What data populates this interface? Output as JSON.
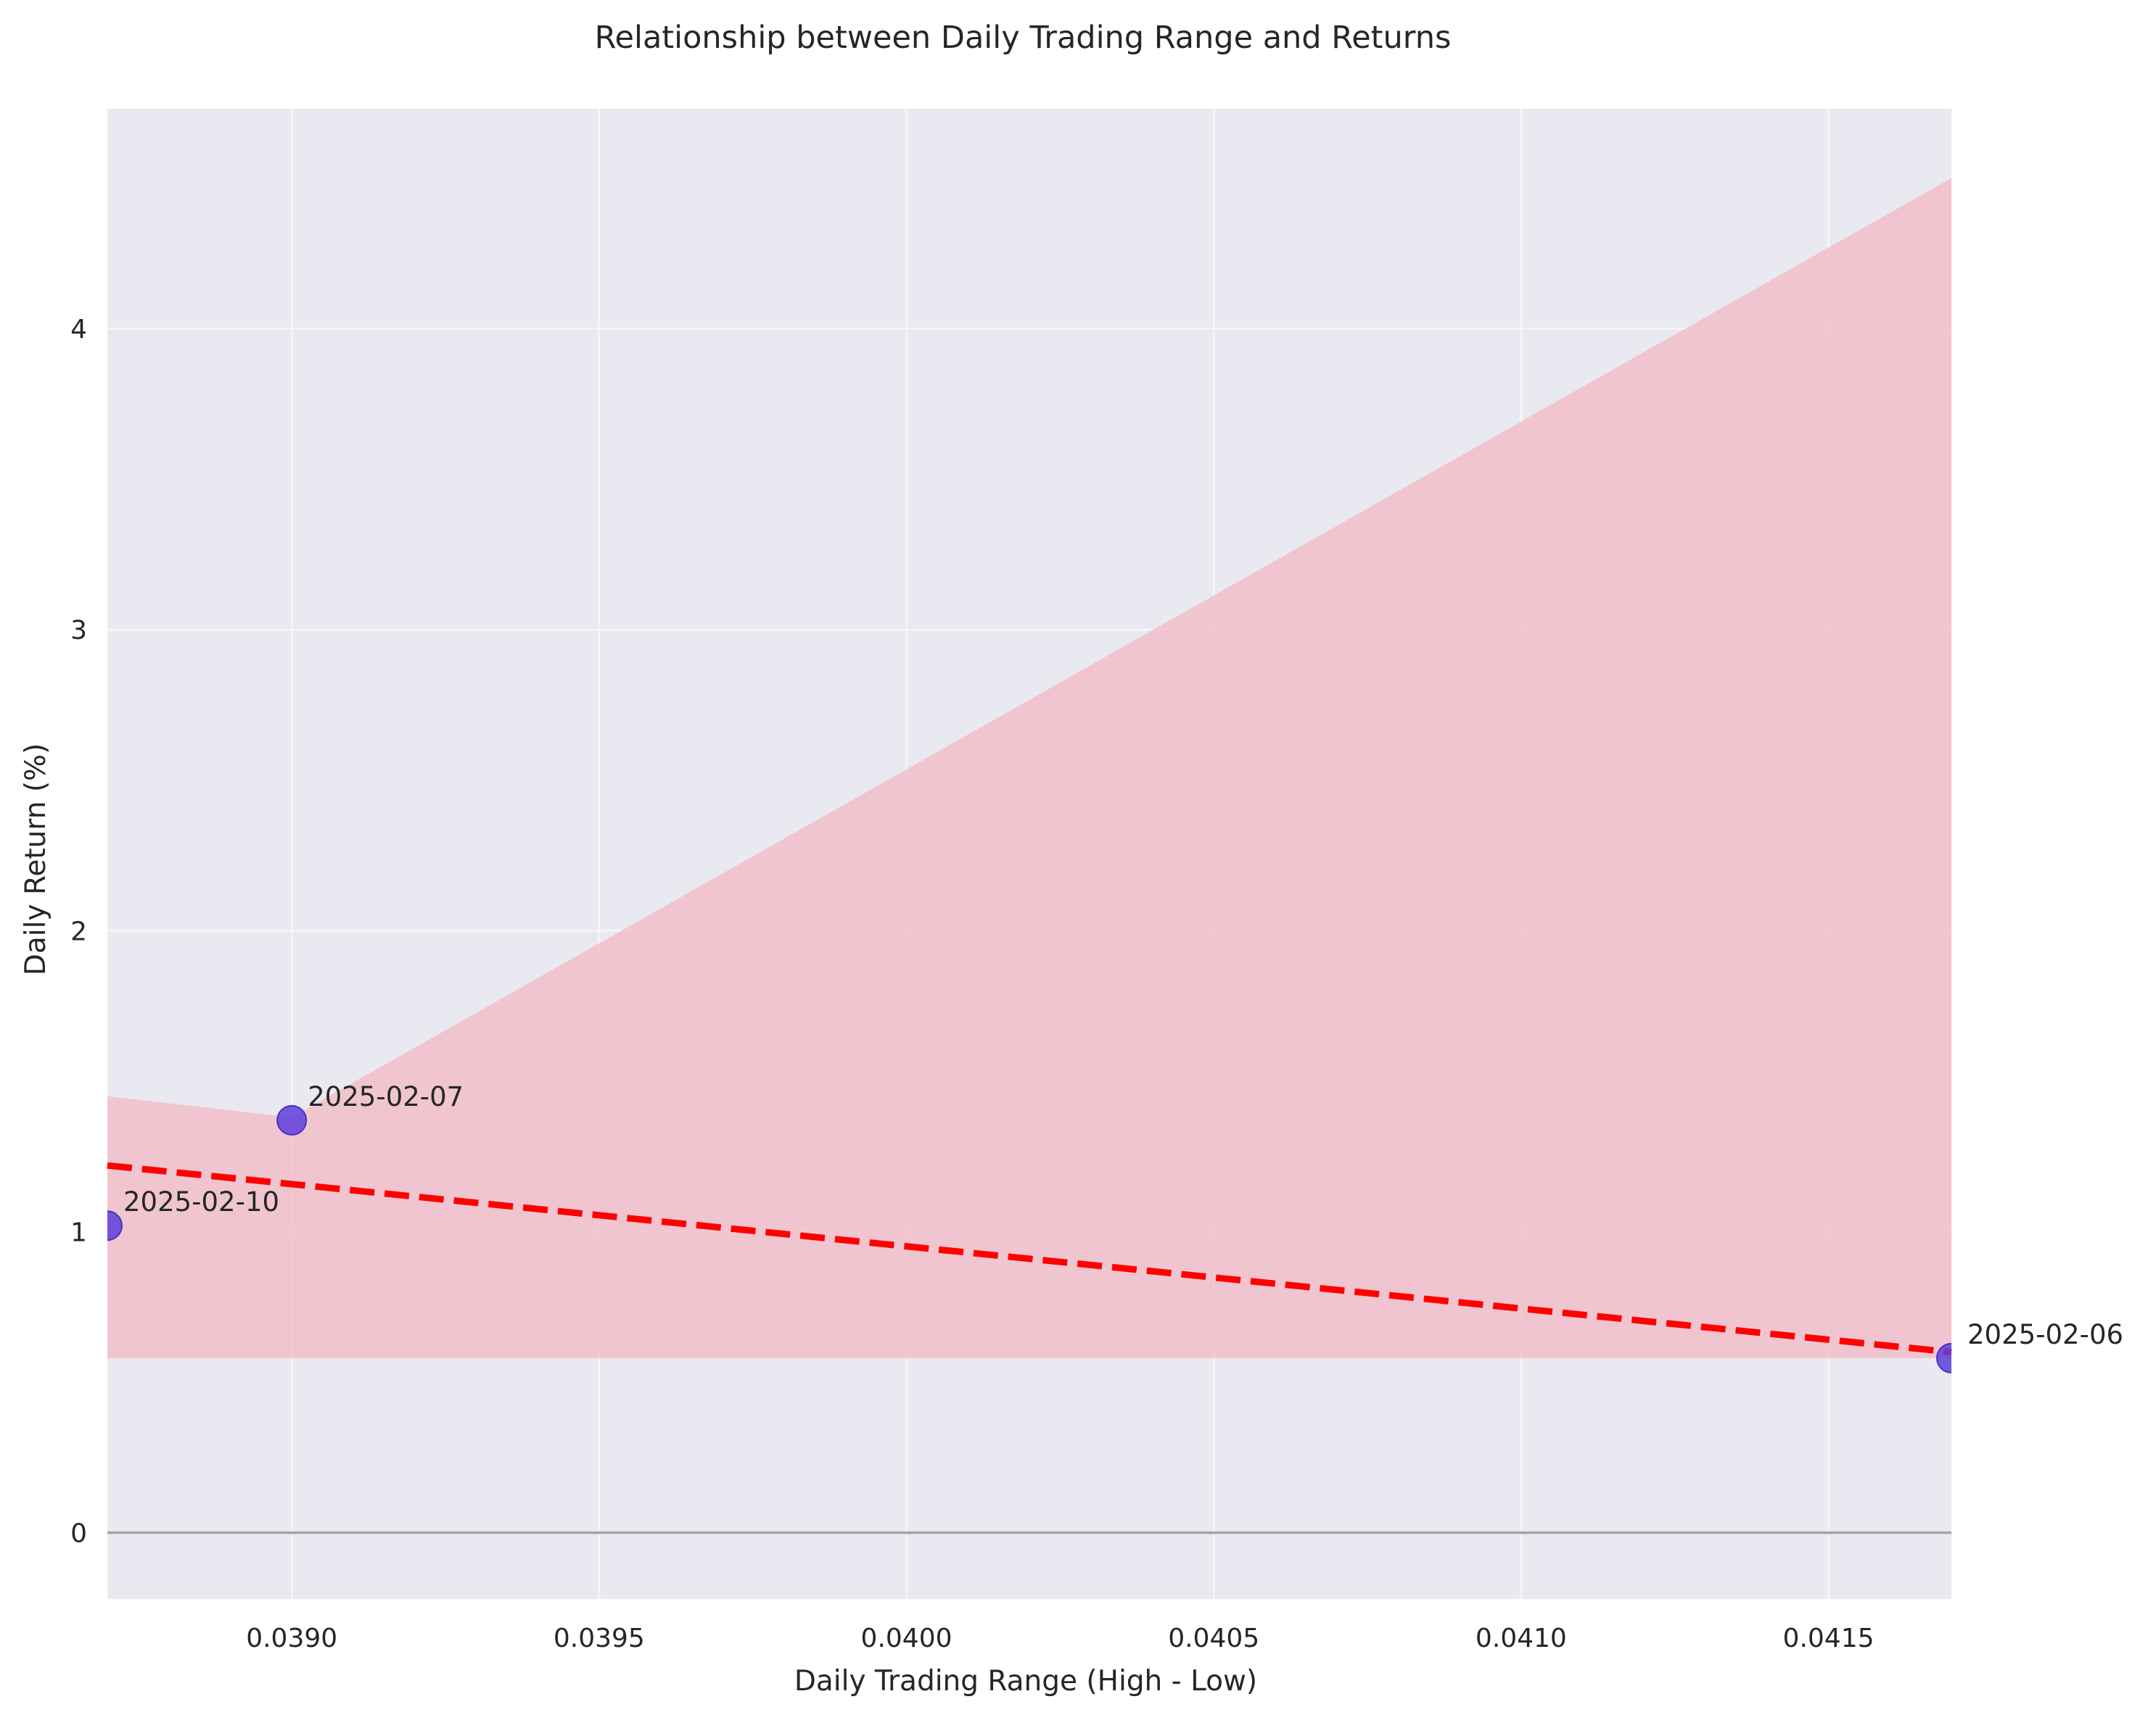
{
  "chart_data": {
    "type": "scatter",
    "title": "Relationship between Daily Trading Range and Returns",
    "xlabel": "Daily Trading Range (High - Low)",
    "ylabel": "Daily Return (%)",
    "xlim": [
      0.0387,
      0.0417
    ],
    "ylim": [
      -0.22,
      4.73
    ],
    "x_ticks": [
      0.039,
      0.0395,
      0.04,
      0.0405,
      0.041,
      0.0415
    ],
    "x_tick_labels": [
      "0.0390",
      "0.0395",
      "0.0400",
      "0.0405",
      "0.0410",
      "0.0415"
    ],
    "y_ticks": [
      0,
      1,
      2,
      3,
      4
    ],
    "y_tick_labels": [
      "0",
      "1",
      "2",
      "3",
      "4"
    ],
    "grid": true,
    "points": [
      {
        "x": 0.0387,
        "y": 1.02,
        "label": "2025-02-10"
      },
      {
        "x": 0.039,
        "y": 1.37,
        "label": "2025-02-07"
      },
      {
        "x": 0.0417,
        "y": 0.58,
        "label": "2025-02-06"
      }
    ],
    "regression_line": {
      "x": [
        0.0387,
        0.0417
      ],
      "y": [
        1.22,
        0.6
      ],
      "style": "dashed"
    },
    "confidence_band": {
      "x": [
        0.0387,
        0.039,
        0.0417
      ],
      "upper": [
        1.45,
        1.38,
        4.5
      ],
      "lower": [
        0.58,
        0.58,
        0.58
      ]
    },
    "reference_line_y": 0
  },
  "colors": {
    "plot_background": "#e9e9f1",
    "grid": "#f6f6f9",
    "point_fill": "#5e3ddc",
    "point_edge": "#4b30c4",
    "regression": "#ff0000",
    "band": "#f2b8c3",
    "zero_line": "#a5a5a5",
    "text": "#262626"
  }
}
